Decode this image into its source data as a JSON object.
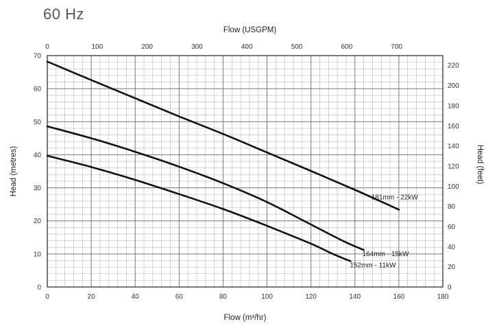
{
  "header": {
    "frequency": "60 Hz"
  },
  "chart_data": {
    "type": "line",
    "title": "",
    "xlabel": "Flow (m³/hr)",
    "ylabel": "Head (metres)",
    "x2label": "Flow (USGPM)",
    "y2label": "Head (feet)",
    "xlim": [
      0,
      180
    ],
    "ylim": [
      0,
      70
    ],
    "x2lim": [
      0,
      792.5
    ],
    "y2lim": [
      0,
      229.7
    ],
    "x_ticks": [
      "0",
      "20",
      "40",
      "60",
      "80",
      "100",
      "120",
      "140",
      "160",
      "180"
    ],
    "y_ticks": [
      "0",
      "10",
      "20",
      "30",
      "40",
      "50",
      "60",
      "70"
    ],
    "x2_ticks": [
      "0",
      "100",
      "200",
      "300",
      "400",
      "500",
      "600",
      "700"
    ],
    "y2_ticks": [
      "0",
      "20",
      "40",
      "60",
      "80",
      "100",
      "120",
      "140",
      "160",
      "180",
      "200",
      "220"
    ],
    "grid": true,
    "series": [
      {
        "name": "181mm - 22kW",
        "color": "#111111",
        "x": [
          0,
          20,
          40,
          60,
          80,
          100,
          120,
          140,
          160
        ],
        "y": [
          68.2,
          62.6,
          57.1,
          51.6,
          46.3,
          40.7,
          35.1,
          29.4,
          23.4
        ]
      },
      {
        "name": "164mm - 15kW",
        "color": "#111111",
        "x": [
          0,
          20,
          40,
          60,
          80,
          100,
          120,
          135,
          144
        ],
        "y": [
          48.6,
          45.0,
          40.9,
          36.4,
          31.4,
          25.7,
          18.9,
          13.8,
          11.2
        ]
      },
      {
        "name": "152mm - 11kW",
        "color": "#111111",
        "x": [
          0,
          20,
          40,
          60,
          80,
          100,
          120,
          130,
          138
        ],
        "y": [
          39.7,
          36.3,
          32.4,
          28.1,
          23.6,
          18.5,
          13.1,
          10.0,
          7.8
        ]
      }
    ]
  }
}
